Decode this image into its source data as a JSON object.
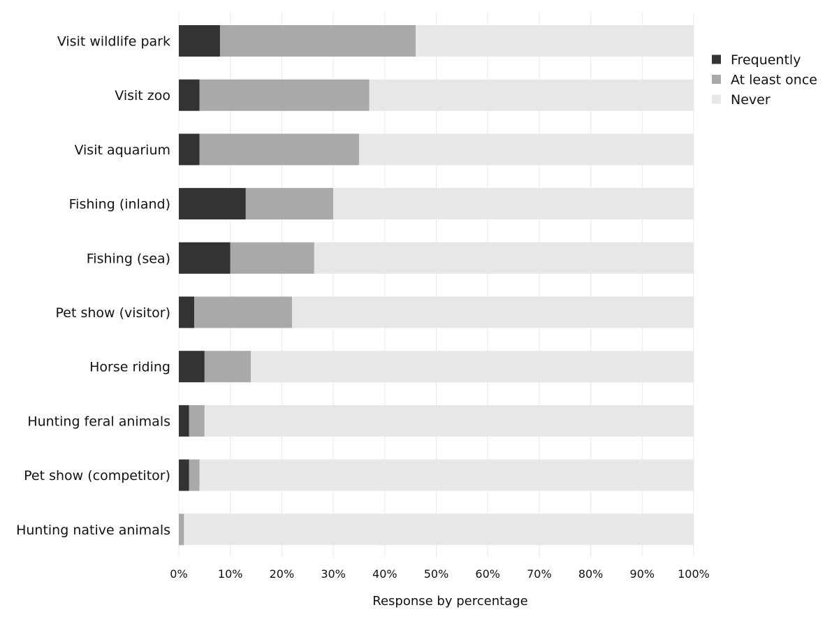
{
  "chart_data": {
    "type": "bar",
    "orientation": "horizontal",
    "stacked": true,
    "title": "",
    "xlabel": "Response by percentage",
    "ylabel": "",
    "xlim": [
      0,
      100
    ],
    "x_ticks": [
      "0%",
      "10%",
      "20%",
      "30%",
      "40%",
      "50%",
      "60%",
      "70%",
      "80%",
      "90%",
      "100%"
    ],
    "grid": "vertical",
    "legend_position": "top-right",
    "categories": [
      "Visit wildlife park",
      "Visit zoo",
      "Visit aquarium",
      "Fishing (inland)",
      "Fishing (sea)",
      "Pet show (visitor)",
      "Horse riding",
      "Hunting feral animals",
      "Pet show (competitor)",
      "Hunting native animals"
    ],
    "series": [
      {
        "name": "Frequently",
        "color": "#333333",
        "values": [
          8,
          4,
          4,
          13,
          10,
          3,
          5,
          2,
          2,
          0
        ]
      },
      {
        "name": "At least once",
        "color": "#a9a9a9",
        "values": [
          38,
          33,
          31,
          17,
          16.3,
          19,
          9,
          3,
          2,
          1
        ]
      },
      {
        "name": "Never",
        "color": "#e7e7e7",
        "values": [
          54,
          63,
          65,
          70,
          73.7,
          78,
          86,
          95,
          96,
          99
        ]
      }
    ]
  }
}
